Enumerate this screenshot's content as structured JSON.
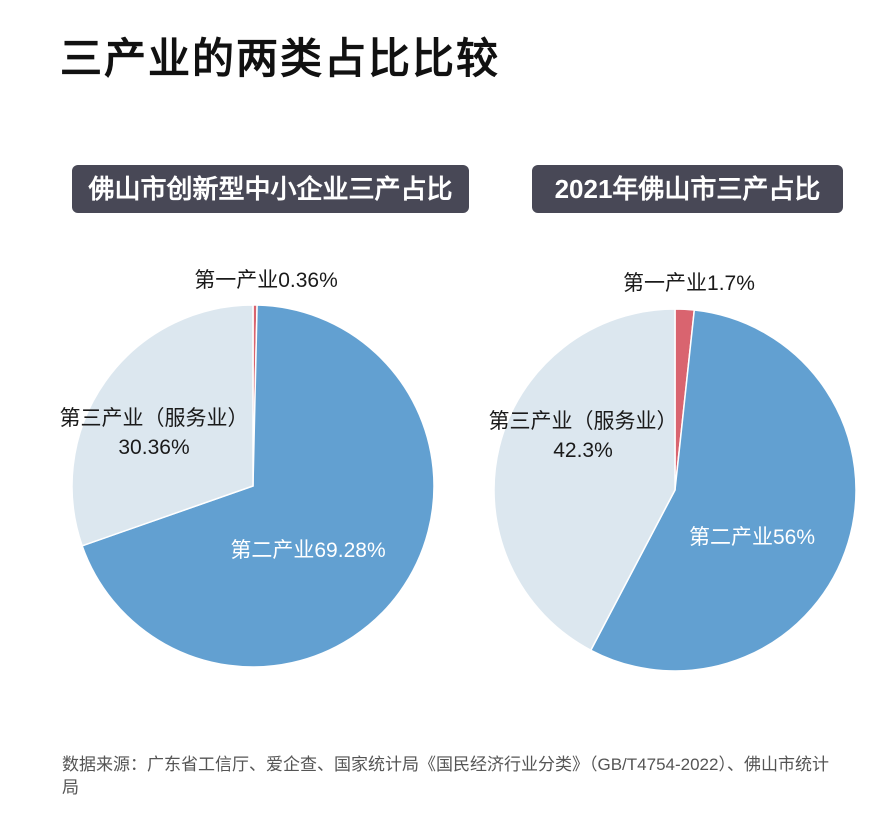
{
  "page_title": "三产业的两类占比比较",
  "source": "数据来源：广东省工信厅、爱企查、国家统计局《国民经济行业分类》（GB/T4754-2022）、佛山市统计局",
  "colors": {
    "primary_industry": "#d9646f",
    "secondary_industry": "#62a0d1",
    "tertiary_industry": "#dce7ef",
    "badge_background": "#484856",
    "badge_text": "#ffffff"
  },
  "chart_data": [
    {
      "type": "pie",
      "title": "佛山市创新型中小企业三产占比",
      "unit": "%",
      "slices": [
        {
          "name": "第一产业",
          "value": 0.36,
          "color": "#d9646f"
        },
        {
          "name": "第二产业",
          "value": 69.28,
          "color": "#62a0d1"
        },
        {
          "name": "第三产业（服务业）",
          "value": 30.36,
          "color": "#dce7ef"
        }
      ]
    },
    {
      "type": "pie",
      "title": "2021年佛山市三产占比",
      "unit": "%",
      "slices": [
        {
          "name": "第一产业",
          "value": 1.7,
          "color": "#d9646f"
        },
        {
          "name": "第二产业",
          "value": 56,
          "color": "#62a0d1"
        },
        {
          "name": "第三产业（服务业）",
          "value": 42.3,
          "color": "#dce7ef"
        }
      ]
    }
  ]
}
